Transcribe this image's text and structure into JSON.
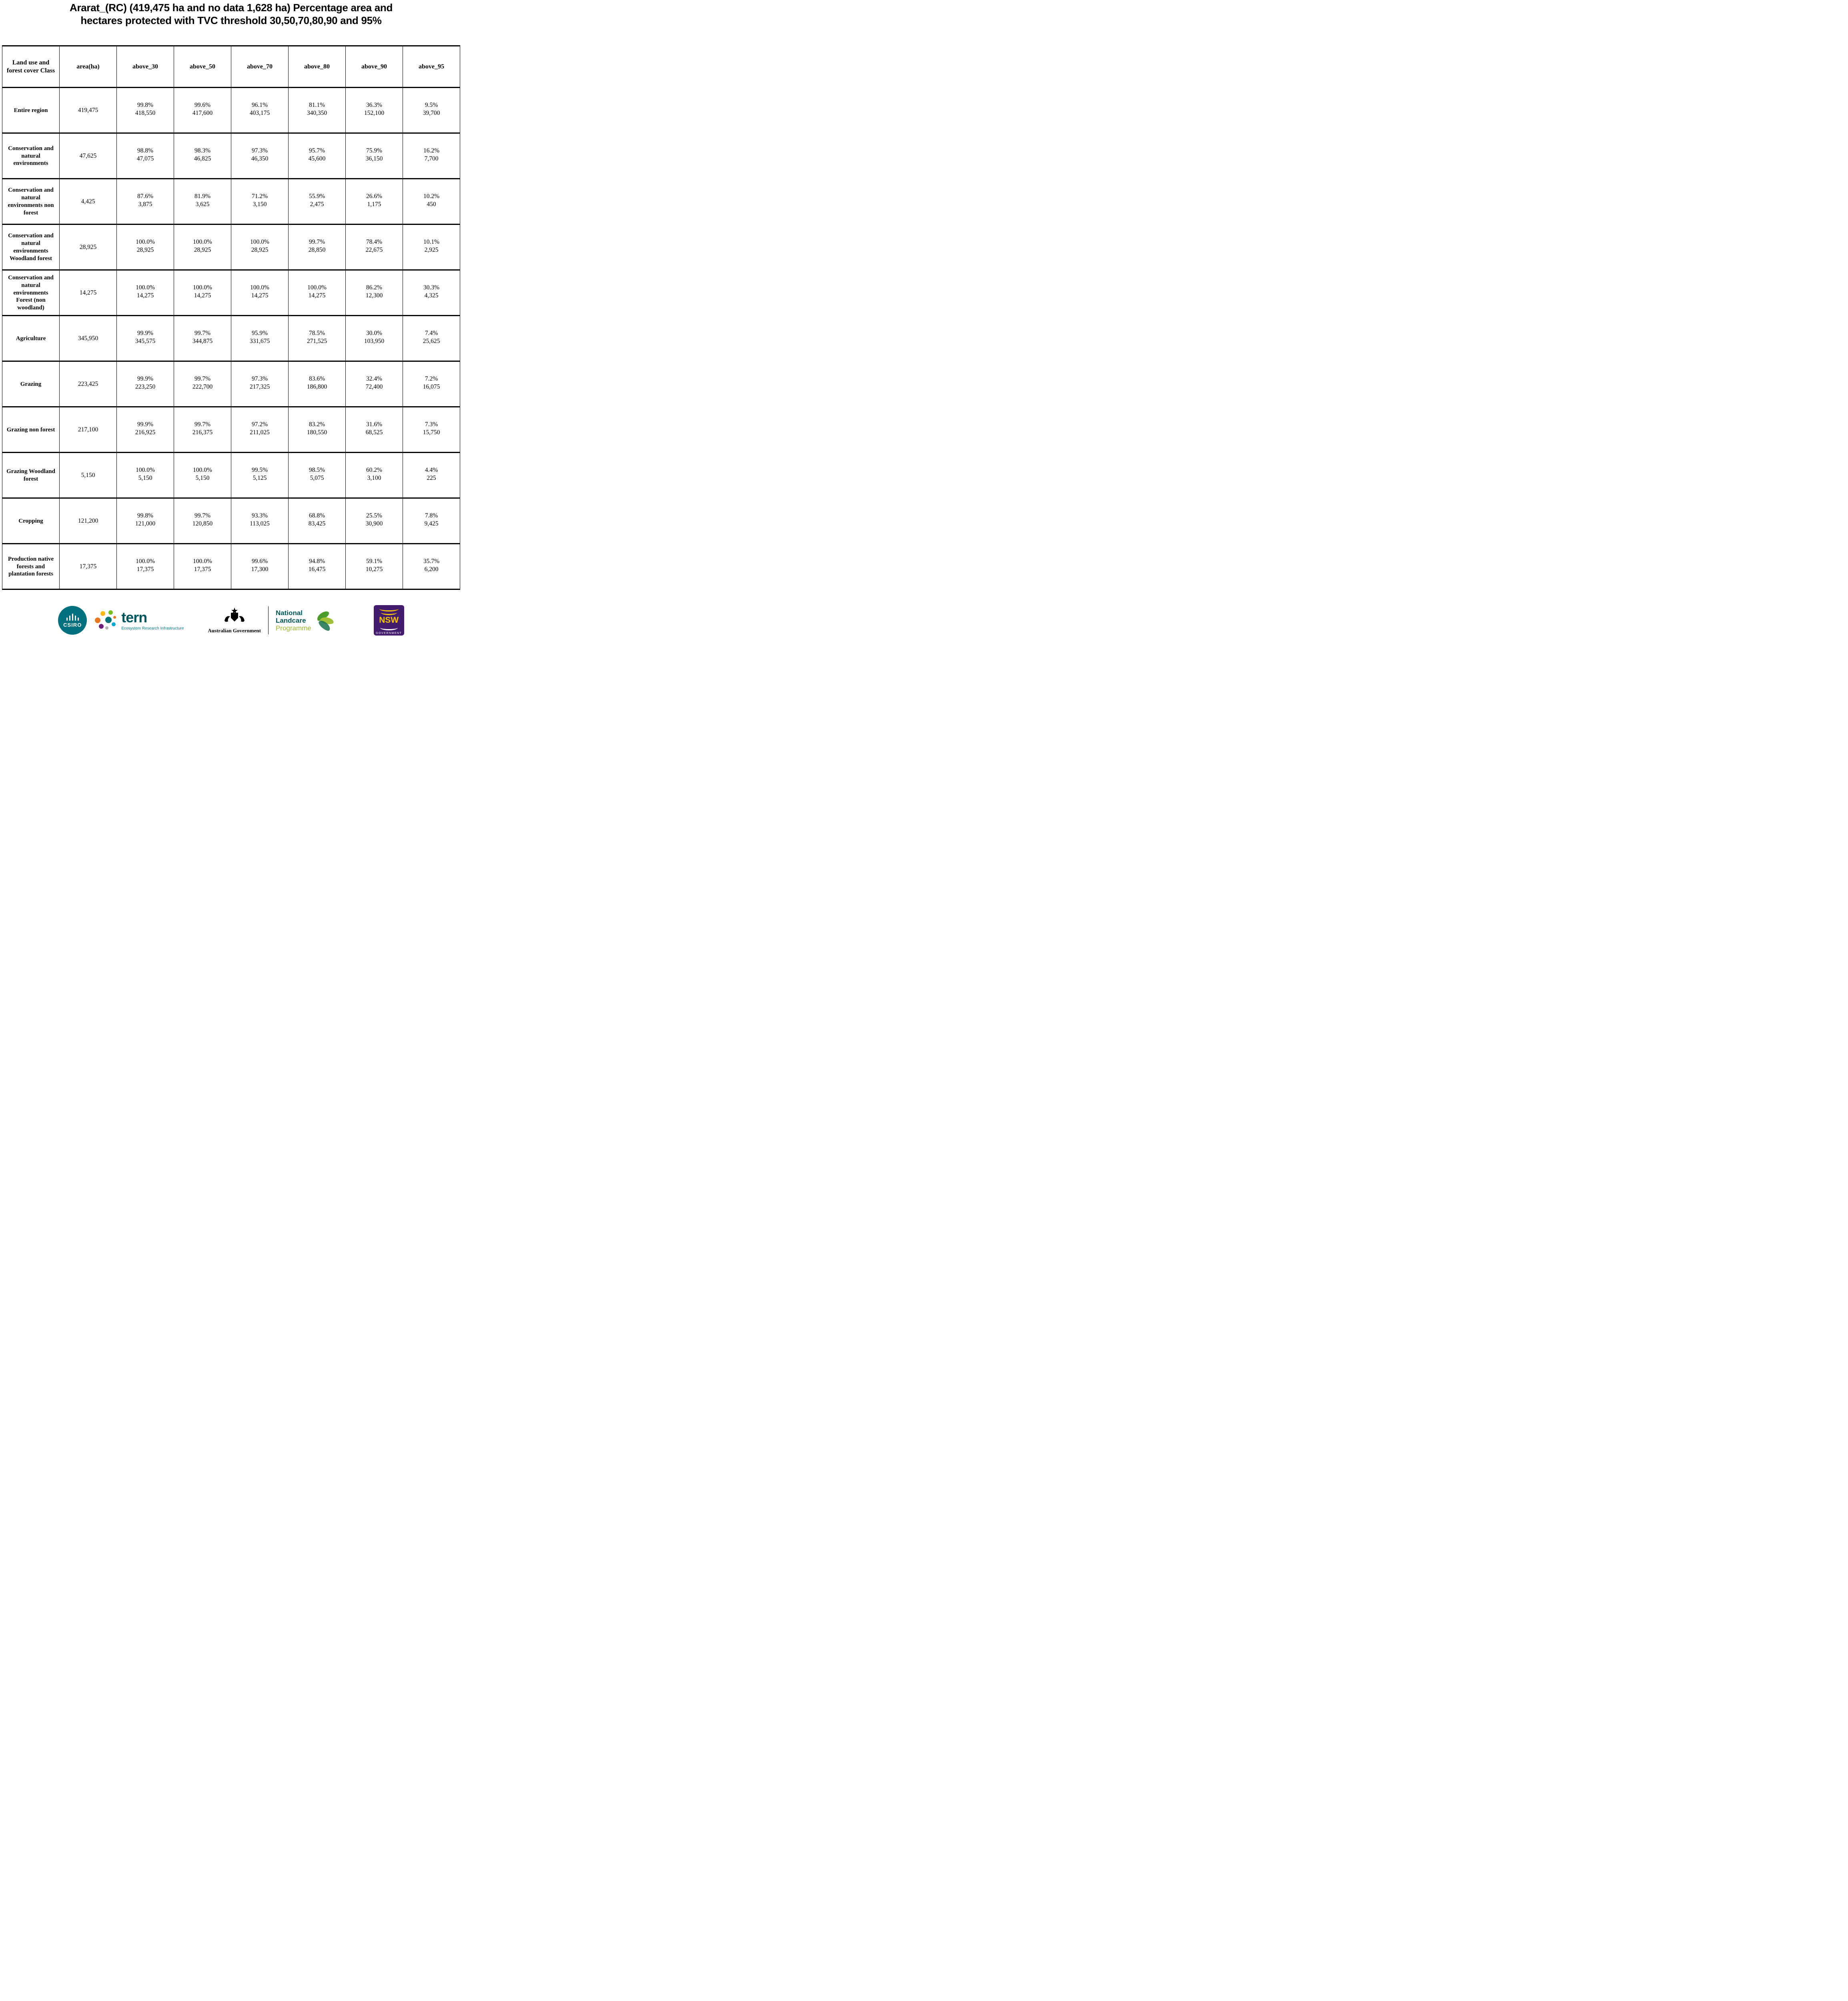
{
  "title": {
    "line1": "Ararat_(RC) (419,475 ha and no data 1,628 ha) Percentage area and",
    "line2": "hectares protected with TVC threshold 30,50,70,80,90 and 95%"
  },
  "table": {
    "headers": [
      "Land use and forest cover Class",
      "area(ha)",
      "above_30",
      "above_50",
      "above_70",
      "above_80",
      "above_90",
      "above_95"
    ],
    "rows": [
      {
        "label": "Entire region",
        "area": "419,475",
        "cells": [
          [
            "99.8%",
            "418,550"
          ],
          [
            "99.6%",
            "417,600"
          ],
          [
            "96.1%",
            "403,175"
          ],
          [
            "81.1%",
            "340,350"
          ],
          [
            "36.3%",
            "152,100"
          ],
          [
            "9.5%",
            "39,700"
          ]
        ]
      },
      {
        "label": "Conservation and natural environments",
        "area": "47,625",
        "cells": [
          [
            "98.8%",
            "47,075"
          ],
          [
            "98.3%",
            "46,825"
          ],
          [
            "97.3%",
            "46,350"
          ],
          [
            "95.7%",
            "45,600"
          ],
          [
            "75.9%",
            "36,150"
          ],
          [
            "16.2%",
            "7,700"
          ]
        ]
      },
      {
        "label": "Conservation and natural environments non forest",
        "area": "4,425",
        "cells": [
          [
            "87.6%",
            "3,875"
          ],
          [
            "81.9%",
            "3,625"
          ],
          [
            "71.2%",
            "3,150"
          ],
          [
            "55.9%",
            "2,475"
          ],
          [
            "26.6%",
            "1,175"
          ],
          [
            "10.2%",
            "450"
          ]
        ]
      },
      {
        "label": "Conservation and natural environments Woodland forest",
        "area": "28,925",
        "cells": [
          [
            "100.0%",
            "28,925"
          ],
          [
            "100.0%",
            "28,925"
          ],
          [
            "100.0%",
            "28,925"
          ],
          [
            "99.7%",
            "28,850"
          ],
          [
            "78.4%",
            "22,675"
          ],
          [
            "10.1%",
            "2,925"
          ]
        ]
      },
      {
        "label": "Conservation and natural environments Forest (non woodland)",
        "area": "14,275",
        "cells": [
          [
            "100.0%",
            "14,275"
          ],
          [
            "100.0%",
            "14,275"
          ],
          [
            "100.0%",
            "14,275"
          ],
          [
            "100.0%",
            "14,275"
          ],
          [
            "86.2%",
            "12,300"
          ],
          [
            "30.3%",
            "4,325"
          ]
        ]
      },
      {
        "label": "Agriculture",
        "area": "345,950",
        "cells": [
          [
            "99.9%",
            "345,575"
          ],
          [
            "99.7%",
            "344,875"
          ],
          [
            "95.9%",
            "331,675"
          ],
          [
            "78.5%",
            "271,525"
          ],
          [
            "30.0%",
            "103,950"
          ],
          [
            "7.4%",
            "25,625"
          ]
        ]
      },
      {
        "label": "Grazing",
        "area": "223,425",
        "cells": [
          [
            "99.9%",
            "223,250"
          ],
          [
            "99.7%",
            "222,700"
          ],
          [
            "97.3%",
            "217,325"
          ],
          [
            "83.6%",
            "186,800"
          ],
          [
            "32.4%",
            "72,400"
          ],
          [
            "7.2%",
            "16,075"
          ]
        ]
      },
      {
        "label": "Grazing non forest",
        "area": "217,100",
        "cells": [
          [
            "99.9%",
            "216,925"
          ],
          [
            "99.7%",
            "216,375"
          ],
          [
            "97.2%",
            "211,025"
          ],
          [
            "83.2%",
            "180,550"
          ],
          [
            "31.6%",
            "68,525"
          ],
          [
            "7.3%",
            "15,750"
          ]
        ]
      },
      {
        "label": "Grazing Woodland forest",
        "area": "5,150",
        "cells": [
          [
            "100.0%",
            "5,150"
          ],
          [
            "100.0%",
            "5,150"
          ],
          [
            "99.5%",
            "5,125"
          ],
          [
            "98.5%",
            "5,075"
          ],
          [
            "60.2%",
            "3,100"
          ],
          [
            "4.4%",
            "225"
          ]
        ]
      },
      {
        "label": "Cropping",
        "area": "121,200",
        "cells": [
          [
            "99.8%",
            "121,000"
          ],
          [
            "99.7%",
            "120,850"
          ],
          [
            "93.3%",
            "113,025"
          ],
          [
            "68.8%",
            "83,425"
          ],
          [
            "25.5%",
            "30,900"
          ],
          [
            "7.8%",
            "9,425"
          ]
        ]
      },
      {
        "label": "Production native forests and plantation forests",
        "area": "17,375",
        "cells": [
          [
            "100.0%",
            "17,375"
          ],
          [
            "100.0%",
            "17,375"
          ],
          [
            "99.6%",
            "17,300"
          ],
          [
            "94.8%",
            "16,475"
          ],
          [
            "59.1%",
            "10,275"
          ],
          [
            "35.7%",
            "6,200"
          ]
        ]
      }
    ]
  },
  "footer": {
    "csiro": {
      "label": "CSIRO",
      "color": "#00707e"
    },
    "tern": {
      "wordmark": "tern",
      "tagline": "Ecosystem Research Infrastructure",
      "color": "#00565c",
      "tagline_color": "#007a87"
    },
    "australian_government": {
      "label": "Australian Government"
    },
    "landcare": {
      "line1": "National",
      "line2": "Landcare",
      "line3": "Programme",
      "color": "#00565a",
      "programme_color": "#9ab832"
    },
    "nsw": {
      "label": "NSW",
      "sublabel": "GOVERNMENT",
      "purple": "#441c6e",
      "yellow": "#f6c500"
    }
  }
}
